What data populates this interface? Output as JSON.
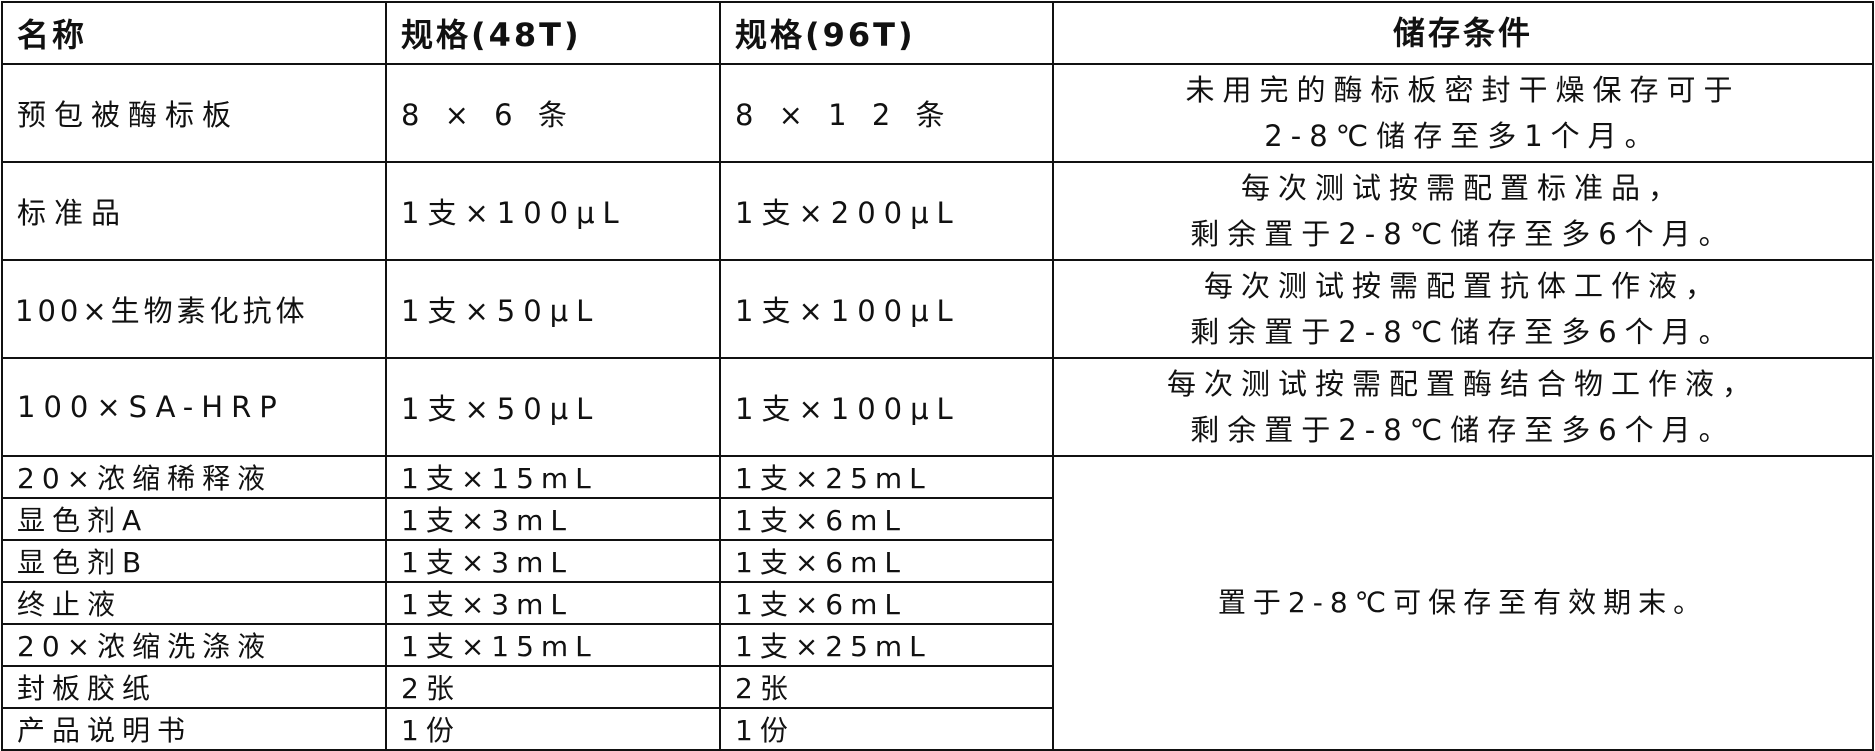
{
  "headers": [
    "名称",
    "规格(48T)",
    "规格(96T)",
    "储存条件"
  ],
  "rows": [
    {
      "name": "预包被酶标板",
      "spec48": "8 × 6 条",
      "spec96": "8 × 1 2 条",
      "storage": [
        "未用完的酶标板密封干燥保存可于",
        "2-8℃储存至多1个月。"
      ]
    },
    {
      "name": "标准品",
      "spec48": "1支×100μL",
      "spec96": "1支×200μL",
      "storage": [
        "每次测试按需配置标准品，",
        "剩余置于2-8℃储存至多6个月。"
      ]
    },
    {
      "name": "100×生物素化抗体",
      "spec48": "1支×50μL",
      "spec96": "1支×100μL",
      "storage": [
        "每次测试按需配置抗体工作液，",
        "剩余置于2-8℃储存至多6个月。"
      ]
    },
    {
      "name": "100×SA-HRP",
      "spec48": "1支×50μL",
      "spec96": "1支×100μL",
      "storage": [
        "每次测试按需配置酶结合物工作液，",
        "剩余置于2-8℃储存至多6个月。"
      ]
    },
    {
      "name": "20×浓缩稀释液",
      "spec48": "1支×15mL",
      "spec96": "1支×25mL"
    },
    {
      "name": "显色剂A",
      "spec48": "1支×3mL",
      "spec96": "1支×6mL"
    },
    {
      "name": "显色剂B",
      "spec48": "1支×3mL",
      "spec96": "1支×6mL"
    },
    {
      "name": "终止液",
      "spec48": "1支×3mL",
      "spec96": "1支×6mL"
    },
    {
      "name": "20×浓缩洗涤液",
      "spec48": "1支×15mL",
      "spec96": "1支×25mL"
    },
    {
      "name": "封板胶纸",
      "spec48": "2张",
      "spec96": "2张"
    },
    {
      "name": "产品说明书",
      "spec48": "1份",
      "spec96": "1份"
    }
  ],
  "merged_storage": "置于2-8℃可保存至有效期末。"
}
